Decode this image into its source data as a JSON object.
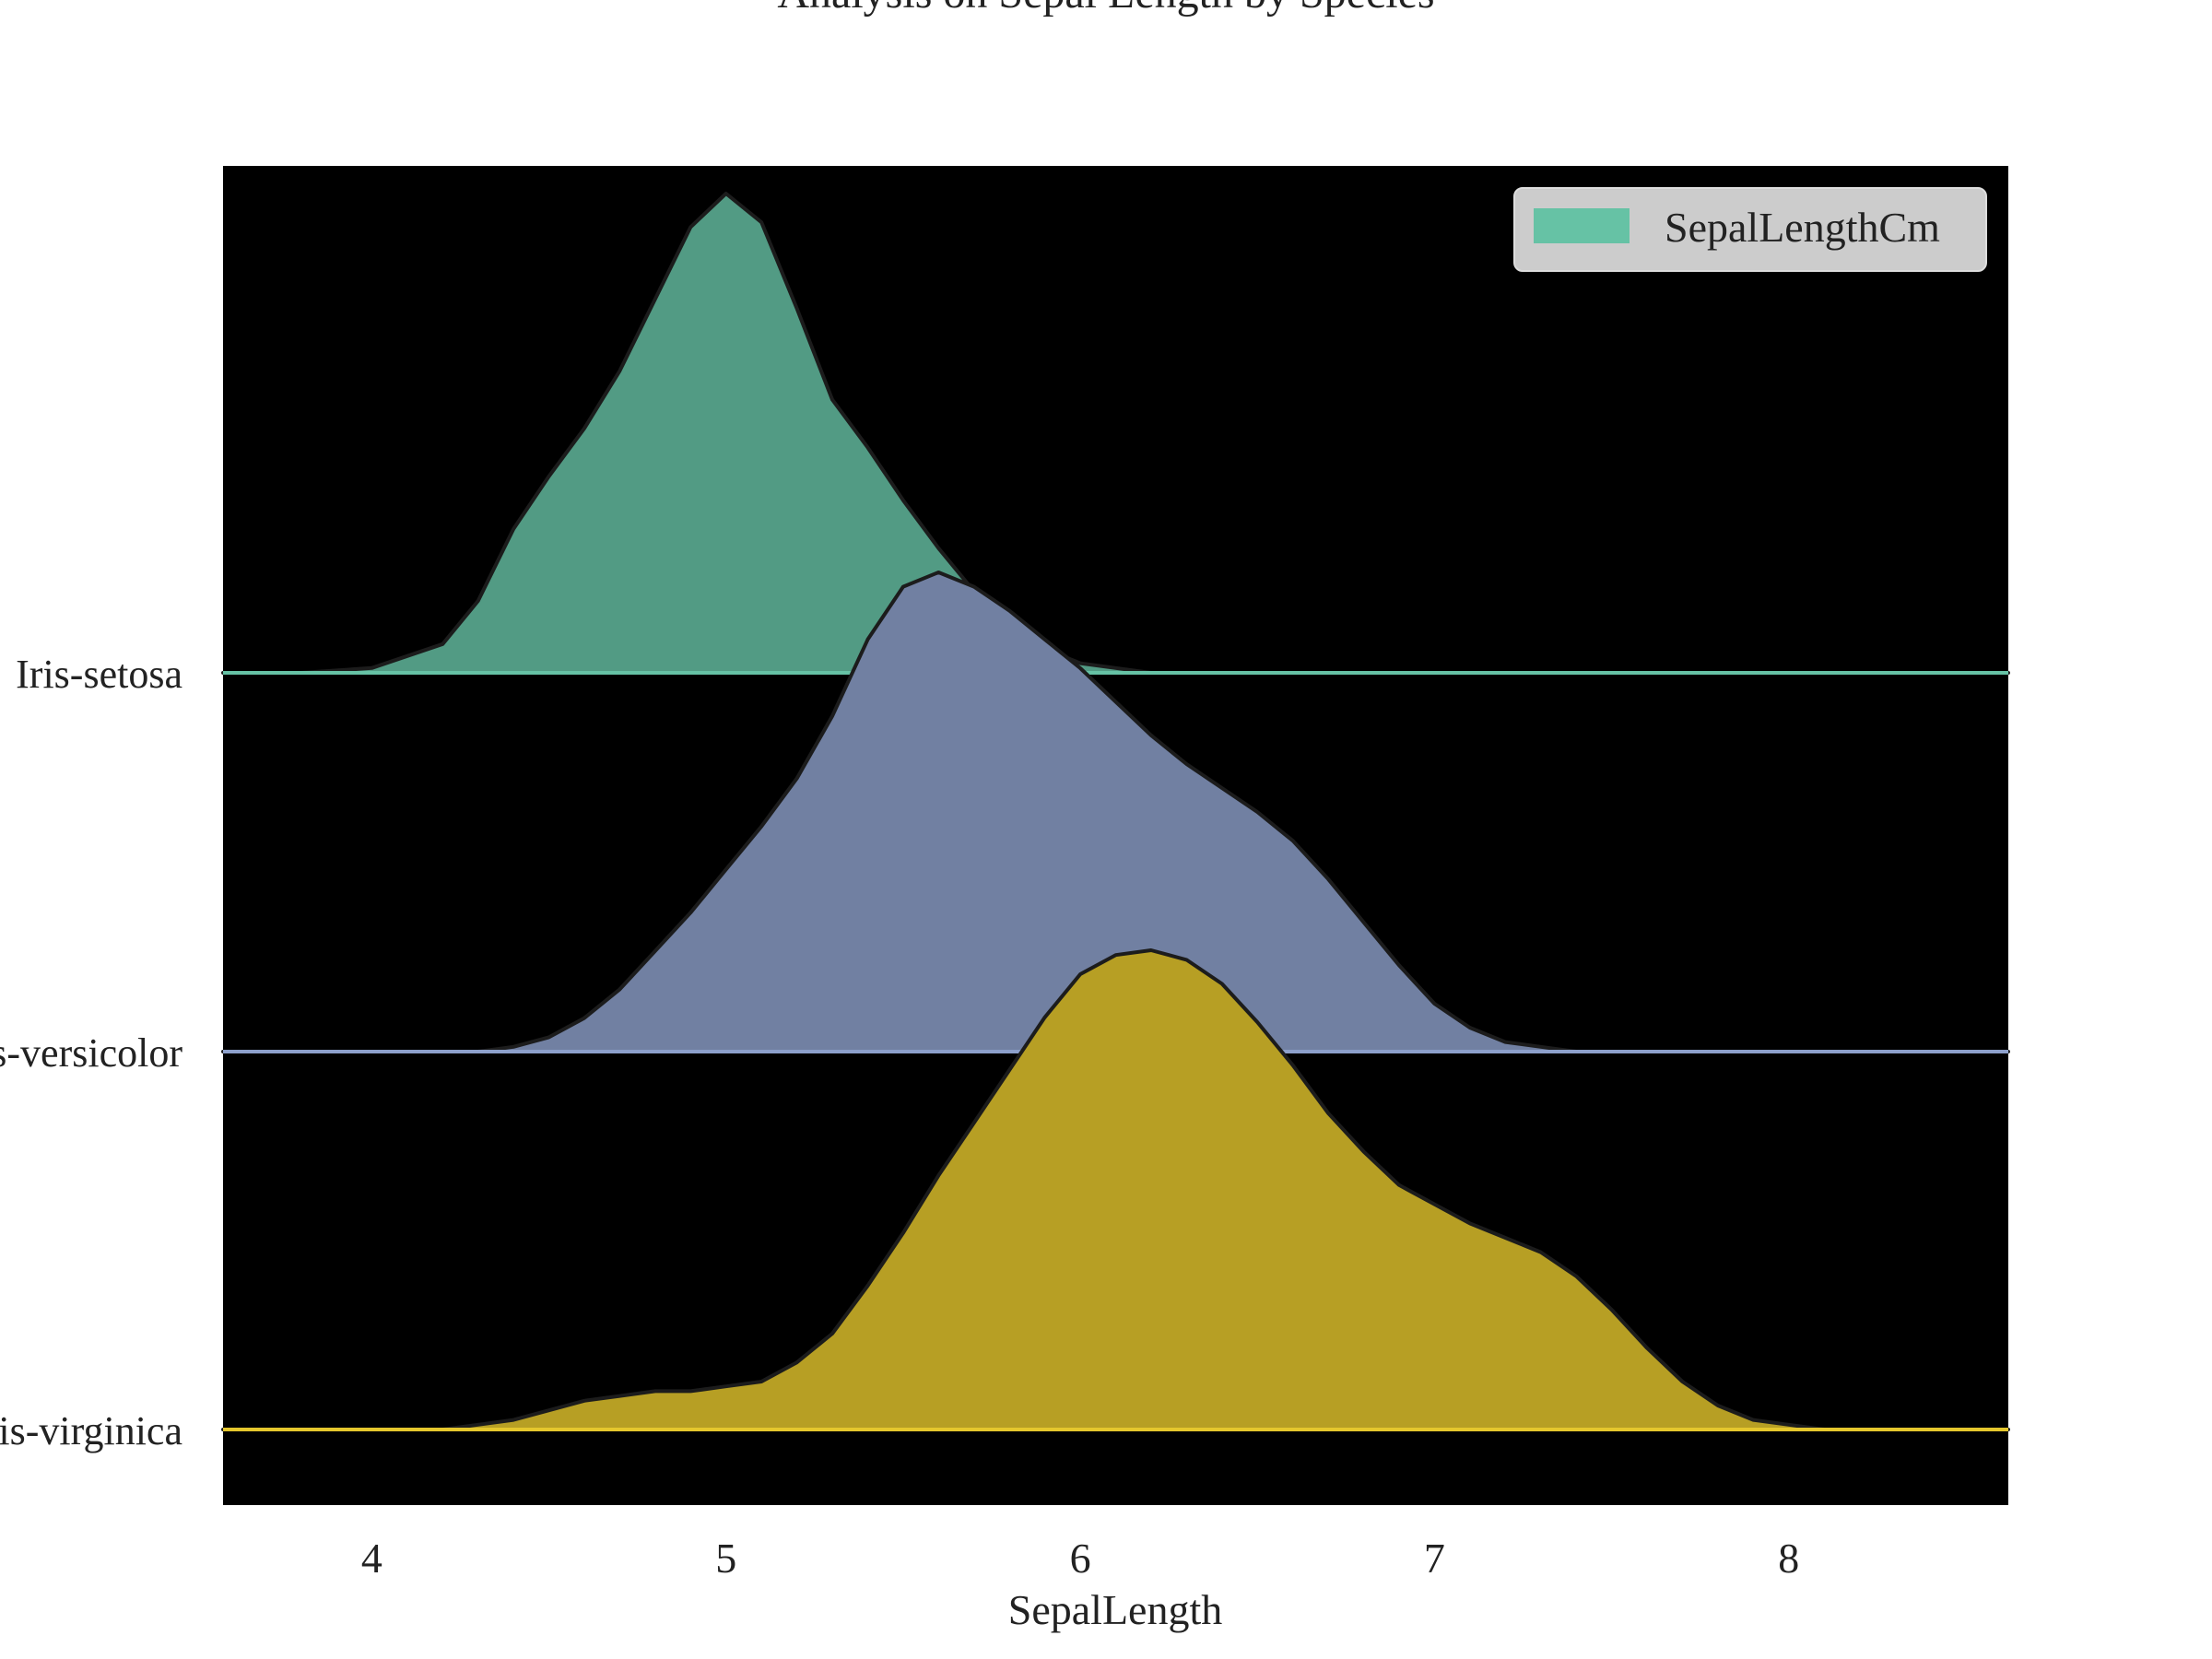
{
  "chart_data": {
    "type": "area",
    "title": "Analysis on Sepal Length by Species",
    "xlabel": "SepalLength",
    "ylabel": "",
    "xlim": [
      3.58,
      8.62
    ],
    "xticks": [
      4,
      5,
      6,
      7,
      8
    ],
    "grid": false,
    "legend": {
      "position": "top-right",
      "entries": [
        "SepalLengthCm"
      ]
    },
    "categories": [
      "Iris-setosa",
      "Iris-versicolor",
      "Iris-virginica"
    ],
    "x": [
      3.6,
      3.8,
      4.0,
      4.2,
      4.3,
      4.4,
      4.5,
      4.6,
      4.7,
      4.8,
      4.9,
      5.0,
      5.1,
      5.2,
      5.3,
      5.4,
      5.5,
      5.6,
      5.7,
      5.8,
      5.9,
      6.0,
      6.1,
      6.2,
      6.3,
      6.4,
      6.5,
      6.6,
      6.7,
      6.8,
      6.9,
      7.0,
      7.1,
      7.2,
      7.3,
      7.4,
      7.5,
      7.6,
      7.7,
      7.8,
      7.9,
      8.0,
      8.1,
      8.2,
      8.4,
      8.6
    ],
    "series": [
      {
        "name": "Iris-setosa",
        "color": "#66c2a5",
        "values": [
          0,
          0,
          0.01,
          0.06,
          0.15,
          0.3,
          0.41,
          0.51,
          0.63,
          0.78,
          0.93,
          1.0,
          0.94,
          0.76,
          0.57,
          0.47,
          0.36,
          0.26,
          0.17,
          0.11,
          0.05,
          0.02,
          0.01,
          0,
          0,
          0,
          0,
          0,
          0,
          0,
          0,
          0,
          0,
          0,
          0,
          0,
          0,
          0,
          0,
          0,
          0,
          0,
          0,
          0,
          0,
          0
        ]
      },
      {
        "name": "Iris-versicolor",
        "color": "#8da0cb",
        "values": [
          0,
          0,
          0,
          0,
          0,
          0.01,
          0.03,
          0.07,
          0.13,
          0.21,
          0.29,
          0.38,
          0.47,
          0.57,
          0.7,
          0.86,
          0.97,
          1.0,
          0.97,
          0.92,
          0.86,
          0.8,
          0.73,
          0.66,
          0.6,
          0.55,
          0.5,
          0.44,
          0.36,
          0.27,
          0.18,
          0.1,
          0.05,
          0.02,
          0.01,
          0,
          0,
          0,
          0,
          0,
          0,
          0,
          0,
          0,
          0,
          0
        ]
      },
      {
        "name": "Iris-virginica",
        "color": "#e5c72d",
        "values": [
          0,
          0,
          0,
          0,
          0.01,
          0.02,
          0.04,
          0.06,
          0.07,
          0.08,
          0.08,
          0.09,
          0.1,
          0.14,
          0.2,
          0.3,
          0.41,
          0.53,
          0.64,
          0.75,
          0.86,
          0.95,
          0.99,
          1.0,
          0.98,
          0.93,
          0.85,
          0.76,
          0.66,
          0.58,
          0.51,
          0.47,
          0.43,
          0.4,
          0.37,
          0.32,
          0.25,
          0.17,
          0.1,
          0.05,
          0.02,
          0.01,
          0,
          0,
          0,
          0
        ]
      }
    ]
  }
}
